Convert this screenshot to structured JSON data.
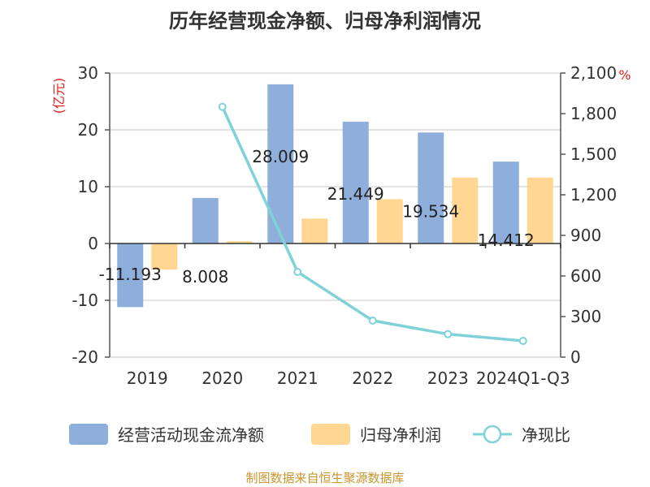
{
  "chart_data": {
    "type": "bar",
    "title": "历年经营现金净额、归母净利润情况",
    "categories": [
      "2019",
      "2020",
      "2021",
      "2022",
      "2023",
      "2024Q1-Q3"
    ],
    "series": [
      {
        "name": "经营活动现金流净额",
        "axis": "left",
        "kind": "bar",
        "color": "#8eaedb",
        "values": [
          -11.193,
          8.008,
          28.009,
          21.449,
          19.534,
          14.412
        ],
        "labels": [
          "-11.193",
          "8.008",
          "28.009",
          "21.449",
          "19.534",
          "14.412"
        ]
      },
      {
        "name": "归母净利润",
        "axis": "left",
        "kind": "bar",
        "color": "#ffd793",
        "values": [
          -4.6,
          0.4,
          4.4,
          7.8,
          11.6,
          11.6
        ]
      },
      {
        "name": "净现比",
        "axis": "right",
        "kind": "line",
        "color": "#7fd3d8",
        "values": [
          null,
          1850,
          630,
          270,
          170,
          120
        ]
      }
    ],
    "left_axis": {
      "unit": "(亿元)",
      "ylim": [
        -20,
        30
      ],
      "ticks": [
        -20,
        -10,
        0,
        10,
        20,
        30
      ],
      "tick_labels": [
        "-20",
        "-10",
        "0",
        "10",
        "20",
        "30"
      ]
    },
    "right_axis": {
      "unit": "%",
      "ylim": [
        0,
        2100
      ],
      "ticks": [
        0,
        300,
        600,
        900,
        1200,
        1500,
        1800,
        2100
      ],
      "tick_labels": [
        "0",
        "300",
        "600",
        "900",
        "1,200",
        "1,500",
        "1,800",
        "2,100"
      ]
    },
    "legend_position": "bottom",
    "source": "制图数据来自恒生聚源数据库"
  }
}
